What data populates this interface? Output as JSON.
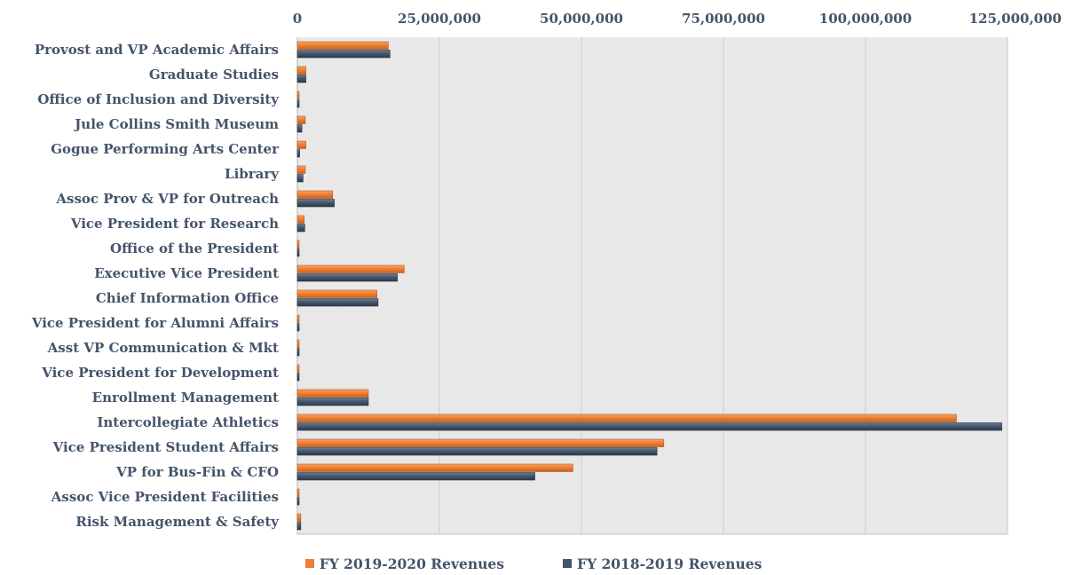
{
  "chart_data": {
    "type": "bar",
    "orientation": "horizontal",
    "title": "",
    "xlabel": "",
    "ylabel": "",
    "xlim": [
      0,
      125000000
    ],
    "x_ticks": [
      "0",
      "25,000,000",
      "50,000,000",
      "75,000,000",
      "100,000,000",
      "125,000,000"
    ],
    "grid": true,
    "legend_position": "bottom",
    "categories": [
      "Provost and VP Academic Affairs",
      "Graduate Studies",
      "Office of Inclusion and Diversity",
      "Jule Collins Smith Museum",
      "Gogue Performing Arts Center",
      "Library",
      "Assoc Prov & VP for Outreach",
      "Vice President for Research",
      "Office of the President",
      "Executive Vice President",
      "Chief Information Office",
      "Vice President for Alumni Affairs",
      "Asst VP Communication & Mkt",
      "Vice President for Development",
      "Enrollment Management",
      "Intercollegiate Athletics",
      "Vice President Student Affairs",
      "VP for Bus-Fin & CFO",
      "Assoc Vice President Facilities",
      "Risk Management & Safety"
    ],
    "series": [
      {
        "name": "FY 2019-2020 Revenues",
        "color": "#ed7d31",
        "values": [
          16000000,
          1500000,
          200000,
          1400000,
          1500000,
          1400000,
          6200000,
          1200000,
          250000,
          18800000,
          14000000,
          200000,
          300000,
          250000,
          12500000,
          116000000,
          64500000,
          48500000,
          200000,
          600000
        ]
      },
      {
        "name": "FY 2018-2019 Revenues",
        "color": "#44546a",
        "values": [
          16300000,
          1500000,
          200000,
          800000,
          400000,
          1000000,
          6500000,
          1300000,
          250000,
          17600000,
          14200000,
          200000,
          300000,
          250000,
          12500000,
          124000000,
          63300000,
          41800000,
          250000,
          600000
        ]
      }
    ]
  }
}
